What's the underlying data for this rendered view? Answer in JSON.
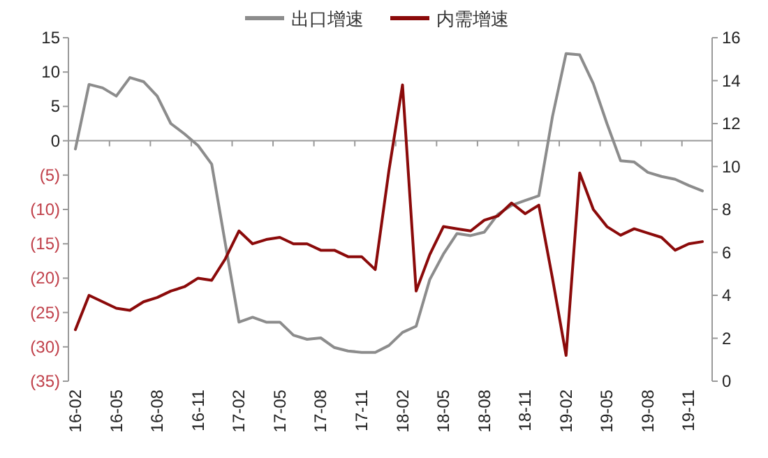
{
  "chart_data": {
    "type": "line",
    "categories": [
      "16-02",
      null,
      null,
      "16-05",
      null,
      null,
      "16-08",
      null,
      null,
      "16-11",
      null,
      null,
      "17-02",
      null,
      null,
      "17-05",
      null,
      null,
      "17-08",
      null,
      null,
      "17-11",
      null,
      null,
      "18-02",
      null,
      null,
      "18-05",
      null,
      null,
      "18-08",
      null,
      null,
      "18-11",
      null,
      null,
      "19-02",
      null,
      null,
      "19-05",
      null,
      null,
      "19-08",
      null,
      null,
      "19-11",
      null
    ],
    "series": [
      {
        "name": "出口增速",
        "color": "#8c8c8c",
        "axis": "y",
        "values": [
          -1.2,
          8.2,
          7.7,
          6.5,
          9.2,
          8.6,
          6.5,
          2.5,
          1.0,
          -0.7,
          -3.4,
          -15,
          -26.4,
          -25.7,
          -26.4,
          -26.4,
          -28.3,
          -28.9,
          -28.7,
          -30.1,
          -30.6,
          -30.8,
          -30.8,
          -29.8,
          -27.9,
          -27.0,
          -20.2,
          -16.5,
          -13.5,
          -13.8,
          -13.3,
          -10.7,
          -9.4,
          -8.7,
          -8.0,
          3.5,
          12.7,
          12.5,
          8.3,
          2.5,
          -2.9,
          -3.1,
          -4.6,
          -5.2,
          -5.6,
          -6.5,
          -7.3
        ]
      },
      {
        "name": "内需增速",
        "color": "#8b0a0a",
        "axis": "y2",
        "values": [
          2.4,
          4.0,
          3.7,
          3.4,
          3.3,
          3.7,
          3.9,
          4.2,
          4.4,
          4.8,
          4.7,
          5.7,
          7.0,
          6.4,
          6.6,
          6.7,
          6.4,
          6.4,
          6.1,
          6.1,
          5.8,
          5.8,
          5.2,
          9.8,
          13.8,
          4.2,
          5.9,
          7.2,
          7.1,
          7.0,
          7.5,
          7.7,
          8.3,
          7.8,
          8.2,
          4.8,
          1.2,
          9.7,
          8.0,
          7.2,
          6.8,
          7.1,
          6.9,
          6.7,
          6.1,
          6.4,
          6.5
        ]
      }
    ],
    "ylim": [
      -35,
      15
    ],
    "yticks": [
      15,
      10,
      5,
      0,
      {
        "value": -5,
        "label": "(5)"
      },
      {
        "value": -10,
        "label": "(10)"
      },
      {
        "value": -15,
        "label": "(15)"
      },
      {
        "value": -20,
        "label": "(20)"
      },
      {
        "value": -25,
        "label": "(25)"
      },
      {
        "value": -30,
        "label": "(30)"
      },
      {
        "value": -35,
        "label": "(35)"
      }
    ],
    "y2lim": [
      0,
      16
    ],
    "y2ticks": [
      0,
      2,
      4,
      6,
      8,
      10,
      12,
      14,
      16
    ],
    "legend": "top"
  }
}
